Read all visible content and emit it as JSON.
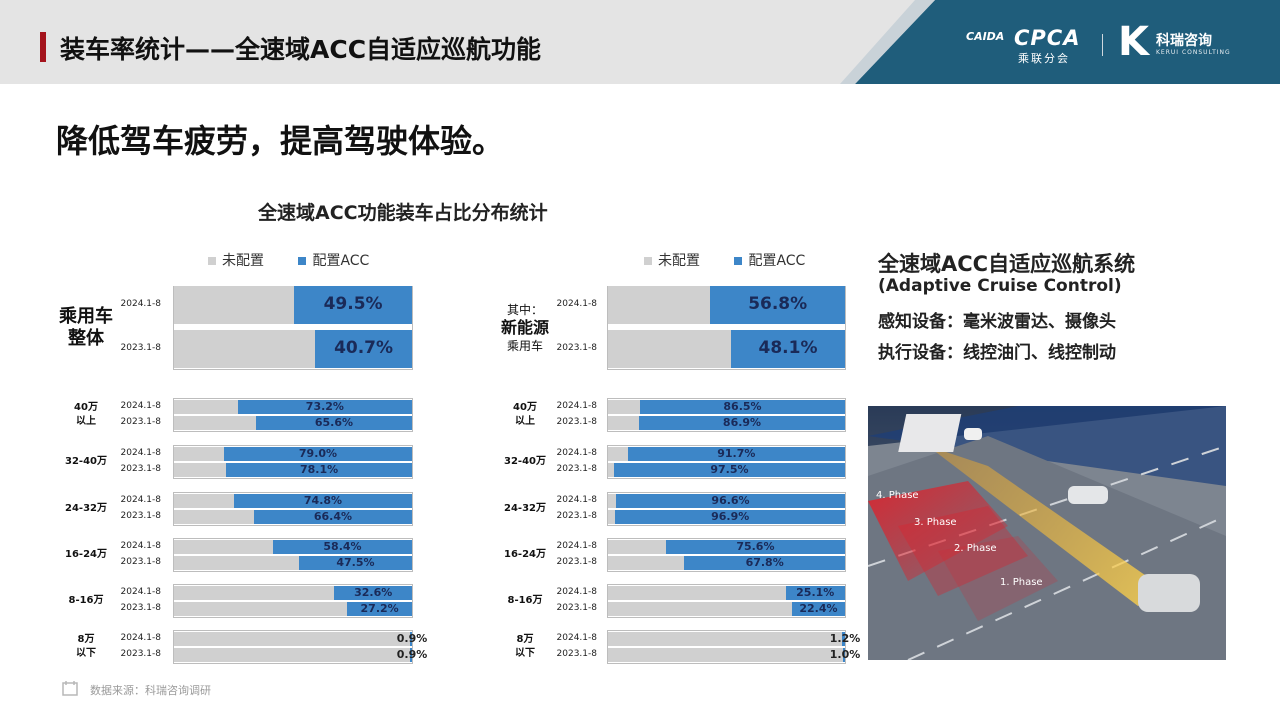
{
  "header": {
    "title": "装车率统计——全速域ACC自适应巡航功能",
    "logo_cpca": "CPCA",
    "logo_cpca_sub": "乘联分会",
    "logo_cpca_mark": "CAIDA",
    "logo_kerui_cn": "科瑞咨询",
    "logo_kerui_en": "KERUI CONSULTING"
  },
  "slogan": "降低驾车疲劳，提高驾驶体验。",
  "chart_title": "全速域ACC功能装车占比分布统计",
  "colors": {
    "unconfigured": "#d0d0d0",
    "acc": "#3d86c8",
    "accent": "#a4131c",
    "header_bg": "#e4e4e4",
    "logo_panel": "#1f5d7b"
  },
  "legend": {
    "unconfigured": "未配置",
    "acc": "配置ACC"
  },
  "chart_data": [
    {
      "type": "bar",
      "orientation": "horizontal-stacked-100",
      "legend": [
        "未配置",
        "配置ACC"
      ],
      "groups": [
        {
          "label": "乘用车 整体",
          "label_lines": [
            "乘用车",
            "整体"
          ],
          "size": "big",
          "rows": [
            {
              "period": "2024.1-8",
              "acc": 49.5,
              "acc_label": "49.5%"
            },
            {
              "period": "2023.1-8",
              "acc": 40.7,
              "acc_label": "40.7%"
            }
          ]
        },
        {
          "label": "40万以上",
          "label_lines": [
            "40万",
            "以上"
          ],
          "rows": [
            {
              "period": "2024.1-8",
              "acc": 73.2,
              "acc_label": "73.2%"
            },
            {
              "period": "2023.1-8",
              "acc": 65.6,
              "acc_label": "65.6%"
            }
          ]
        },
        {
          "label": "32-40万",
          "label_lines": [
            "32-40万"
          ],
          "rows": [
            {
              "period": "2024.1-8",
              "acc": 79.0,
              "acc_label": "79.0%"
            },
            {
              "period": "2023.1-8",
              "acc": 78.1,
              "acc_label": "78.1%"
            }
          ]
        },
        {
          "label": "24-32万",
          "label_lines": [
            "24-32万"
          ],
          "rows": [
            {
              "period": "2024.1-8",
              "acc": 74.8,
              "acc_label": "74.8%"
            },
            {
              "period": "2023.1-8",
              "acc": 66.4,
              "acc_label": "66.4%"
            }
          ]
        },
        {
          "label": "16-24万",
          "label_lines": [
            "16-24万"
          ],
          "rows": [
            {
              "period": "2024.1-8",
              "acc": 58.4,
              "acc_label": "58.4%"
            },
            {
              "period": "2023.1-8",
              "acc": 47.5,
              "acc_label": "47.5%"
            }
          ]
        },
        {
          "label": "8-16万",
          "label_lines": [
            "8-16万"
          ],
          "rows": [
            {
              "period": "2024.1-8",
              "acc": 32.6,
              "acc_label": "32.6%"
            },
            {
              "period": "2023.1-8",
              "acc": 27.2,
              "acc_label": "27.2%"
            }
          ]
        },
        {
          "label": "8万以下",
          "label_lines": [
            "8万",
            "以下"
          ],
          "rows": [
            {
              "period": "2024.1-8",
              "acc": 0.9,
              "acc_label": "0.9%"
            },
            {
              "period": "2023.1-8",
              "acc": 0.9,
              "acc_label": "0.9%"
            }
          ]
        }
      ]
    },
    {
      "type": "bar",
      "orientation": "horizontal-stacked-100",
      "legend": [
        "未配置",
        "配置ACC"
      ],
      "groups": [
        {
          "label": "其中：新能源乘用车",
          "label_lines": [
            "其中：",
            "新能源",
            "乘用车"
          ],
          "size": "big",
          "rows": [
            {
              "period": "2024.1-8",
              "acc": 56.8,
              "acc_label": "56.8%"
            },
            {
              "period": "2023.1-8",
              "acc": 48.1,
              "acc_label": "48.1%"
            }
          ]
        },
        {
          "label": "40万以上",
          "label_lines": [
            "40万",
            "以上"
          ],
          "rows": [
            {
              "period": "2024.1-8",
              "acc": 86.5,
              "acc_label": "86.5%"
            },
            {
              "period": "2023.1-8",
              "acc": 86.9,
              "acc_label": "86.9%"
            }
          ]
        },
        {
          "label": "32-40万",
          "label_lines": [
            "32-40万"
          ],
          "rows": [
            {
              "period": "2024.1-8",
              "acc": 91.7,
              "acc_label": "91.7%"
            },
            {
              "period": "2023.1-8",
              "acc": 97.5,
              "acc_label": "97.5%"
            }
          ]
        },
        {
          "label": "24-32万",
          "label_lines": [
            "24-32万"
          ],
          "rows": [
            {
              "period": "2024.1-8",
              "acc": 96.6,
              "acc_label": "96.6%"
            },
            {
              "period": "2023.1-8",
              "acc": 96.9,
              "acc_label": "96.9%"
            }
          ]
        },
        {
          "label": "16-24万",
          "label_lines": [
            "16-24万"
          ],
          "rows": [
            {
              "period": "2024.1-8",
              "acc": 75.6,
              "acc_label": "75.6%"
            },
            {
              "period": "2023.1-8",
              "acc": 67.8,
              "acc_label": "67.8%"
            }
          ]
        },
        {
          "label": "8-16万",
          "label_lines": [
            "8-16万"
          ],
          "rows": [
            {
              "period": "2024.1-8",
              "acc": 25.1,
              "acc_label": "25.1%"
            },
            {
              "period": "2023.1-8",
              "acc": 22.4,
              "acc_label": "22.4%"
            }
          ]
        },
        {
          "label": "8万以下",
          "label_lines": [
            "8万",
            "以下"
          ],
          "rows": [
            {
              "period": "2024.1-8",
              "acc": 1.2,
              "acc_label": "1.2%"
            },
            {
              "period": "2023.1-8",
              "acc": 1.0,
              "acc_label": "1.0%"
            }
          ]
        }
      ]
    }
  ],
  "side_panel": {
    "title": "全速域ACC自适应巡航系统",
    "subtitle": "(Adaptive Cruise Control)",
    "sensing": "感知设备：毫米波雷达、摄像头",
    "actuation": "执行设备：线控油门、线控制动",
    "phases": [
      "4. Phase",
      "3. Phase",
      "2. Phase",
      "1. Phase"
    ]
  },
  "source": "数据来源：科瑞咨询调研"
}
